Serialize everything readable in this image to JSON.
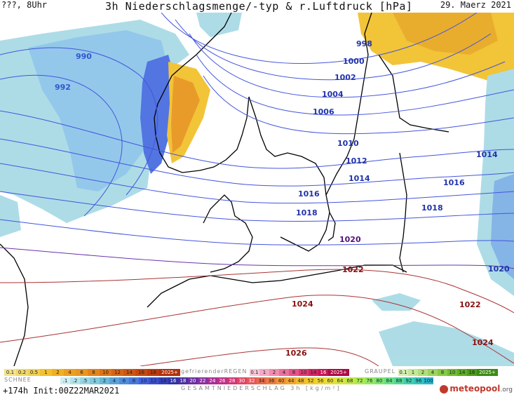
{
  "header": {
    "left": "???, 8Uhr",
    "title": "3h Niederschlagsmenge/-typ & r.Luftdruck [hPa]",
    "date": "29. Maerz 2021"
  },
  "isobars": [
    {
      "label": "990",
      "color": "#3355cc"
    },
    {
      "label": "992",
      "color": "#3355cc"
    },
    {
      "label": "998",
      "color": "#2233aa"
    },
    {
      "label": "1000",
      "color": "#2233aa"
    },
    {
      "label": "1002",
      "color": "#2233aa"
    },
    {
      "label": "1004",
      "color": "#2233aa"
    },
    {
      "label": "1006",
      "color": "#2233aa"
    },
    {
      "label": "1010",
      "color": "#2233aa"
    },
    {
      "label": "1012",
      "color": "#2233aa"
    },
    {
      "label": "1014",
      "color": "#2233aa"
    },
    {
      "label": "1014",
      "color": "#2233aa"
    },
    {
      "label": "1016",
      "color": "#2233aa"
    },
    {
      "label": "1016",
      "color": "#2233aa"
    },
    {
      "label": "1018",
      "color": "#2233aa"
    },
    {
      "label": "1018",
      "color": "#2233aa"
    },
    {
      "label": "1020",
      "color": "#551177"
    },
    {
      "label": "1020",
      "color": "#2233aa"
    },
    {
      "label": "1022",
      "color": "#881111"
    },
    {
      "label": "1022",
      "color": "#881111"
    },
    {
      "label": "1024",
      "color": "#881111"
    },
    {
      "label": "1024",
      "color": "#881111"
    },
    {
      "label": "1026",
      "color": "#881111"
    }
  ],
  "legend": {
    "snow_title": "SCHNEE",
    "snow_values": [
      "0.1",
      "0.2",
      "0.5",
      "1",
      "2",
      "4",
      "6",
      "8",
      "10",
      "12",
      "14",
      "16",
      "18",
      "2025+"
    ],
    "freezing_title": "gefrierenderREGEN",
    "freezing_values": [
      "0.1",
      "1",
      "2",
      "4",
      "8",
      "10",
      "14",
      "16",
      "2025+"
    ],
    "graupel_title": "GRAUPEL",
    "graupel_values": [
      "0.1",
      "1",
      "2",
      "4",
      "8",
      "10",
      "14",
      "16",
      "2025+"
    ],
    "total_values": [
      ".1",
      ".2",
      ".5",
      "1",
      "2",
      "4",
      "6",
      "8",
      "10",
      "12",
      "14",
      "16",
      "18",
      "20",
      "22",
      "24",
      "26",
      "28",
      "30",
      "32",
      "34",
      "36",
      "40",
      "44",
      "48",
      "52",
      "56",
      "60",
      "64",
      "68",
      "72",
      "76",
      "80",
      "84",
      "88",
      "92",
      "96",
      "100"
    ],
    "total_title": "GESAMTNIEDERSCHLAG 3h [kg/m²]"
  },
  "footer": {
    "run": "+174h Init:00Z22MAR2021",
    "brand": "meteopool",
    "brand_suffix": ".org"
  },
  "colors": {
    "isobar": "#4455dd",
    "coast": "#000000",
    "rain_light": "#a9dbe6",
    "rain_mid": "#7fb0e6",
    "rain_strong": "#4060e0",
    "snow_yellow": "#f1c40f",
    "snow_orange": "#e67e22"
  }
}
